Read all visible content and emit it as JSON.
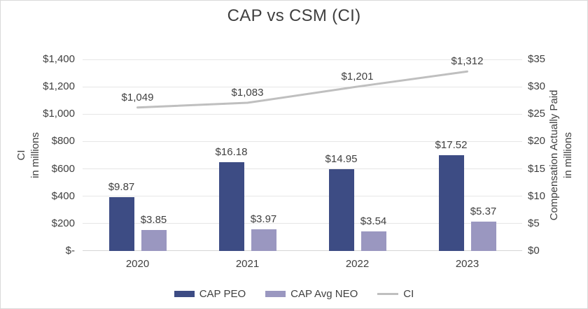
{
  "chart_data": {
    "type": "combo-bar-line",
    "title": "CAP vs CSM (CI)",
    "categories": [
      "2020",
      "2021",
      "2022",
      "2023"
    ],
    "series": [
      {
        "name": "CAP PEO",
        "type": "bar",
        "axis": "right",
        "color": "#3d4c84",
        "values": [
          9.87,
          16.18,
          14.95,
          17.52
        ],
        "labels": [
          "$9.87",
          "$16.18",
          "$14.95",
          "$17.52"
        ]
      },
      {
        "name": "CAP Avg NEO",
        "type": "bar",
        "axis": "right",
        "color": "#9a97c0",
        "values": [
          3.85,
          3.97,
          3.54,
          5.37
        ],
        "labels": [
          "$3.85",
          "$3.97",
          "$3.54",
          "$5.37"
        ]
      },
      {
        "name": "CI",
        "type": "line",
        "axis": "left",
        "color": "#bfbfbf",
        "values": [
          1049,
          1083,
          1201,
          1312
        ],
        "labels": [
          "$1,049",
          "$1,083",
          "$1,201",
          "$1,312"
        ]
      }
    ],
    "left_axis": {
      "title_lines": [
        "CI",
        "in millions"
      ],
      "min": 0,
      "max": 1400,
      "step": 200,
      "tick_labels": [
        "$-",
        "$200",
        "$400",
        "$600",
        "$800",
        "$1,000",
        "$1,200",
        "$1,400"
      ]
    },
    "right_axis": {
      "title_lines": [
        "Compensation Actually Paid",
        "in millions"
      ],
      "min": 0,
      "max": 35,
      "step": 5,
      "tick_labels": [
        "$0",
        "$5",
        "$10",
        "$15",
        "$20",
        "$25",
        "$30",
        "$35"
      ]
    },
    "legend": [
      {
        "label": "CAP PEO",
        "swatch": "bar",
        "color": "#3d4c84"
      },
      {
        "label": "CAP Avg NEO",
        "swatch": "bar",
        "color": "#9a97c0"
      },
      {
        "label": "CI",
        "swatch": "line",
        "color": "#bfbfbf"
      }
    ],
    "grid": true,
    "legend_position": "bottom",
    "colors": {
      "grid": "#e6e6e6",
      "axis_line": "#d6d6d6",
      "text": "#3f3f3f",
      "background": "#ffffff",
      "border": "#d9d9d9"
    }
  }
}
